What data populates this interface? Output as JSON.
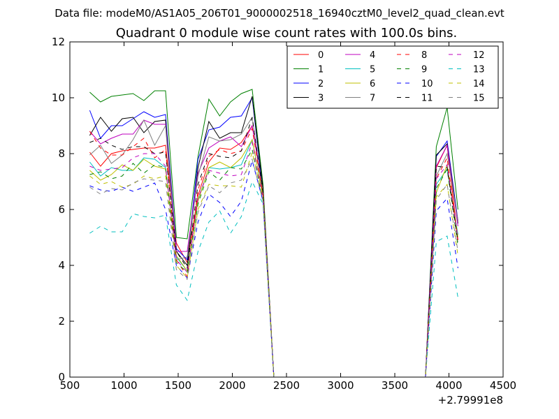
{
  "suptitle": "Data file: modeM0/AS1A05_206T01_9000002518_16940cztM0_level2_quad_clean.evt",
  "chart_data": {
    "type": "line",
    "title": "Quadrant 0 module wise count rates with 100.0s bins.",
    "xlabel": "",
    "ylabel": "",
    "xlim": [
      500,
      4500
    ],
    "ylim": [
      0,
      12
    ],
    "xticks": [
      500,
      1000,
      1500,
      2000,
      2500,
      3000,
      3500,
      4000,
      4500
    ],
    "yticks": [
      0,
      2,
      4,
      6,
      8,
      10,
      12
    ],
    "x_offset_label": "+2.79991e8",
    "grid": false,
    "legend_position": "top-right",
    "legend_columns": 4,
    "x": [
      683,
      783,
      883,
      983,
      1083,
      1183,
      1283,
      1383,
      1483,
      1583,
      1683,
      1783,
      1883,
      1983,
      2083,
      2183,
      2283,
      2383,
      3783,
      3883,
      3983,
      4083
    ],
    "series": [
      {
        "name": "0",
        "color": "#ff0000",
        "dash": false,
        "values": [
          8.05,
          7.55,
          8.0,
          8.1,
          8.15,
          8.2,
          8.2,
          8.3,
          4.8,
          4.1,
          6.5,
          7.7,
          8.2,
          8.15,
          8.4,
          9.0,
          6.7,
          0,
          0,
          7.5,
          8.3,
          4.9
        ]
      },
      {
        "name": "1",
        "color": "#008000",
        "dash": false,
        "values": [
          10.2,
          9.85,
          10.05,
          10.1,
          10.15,
          9.9,
          10.25,
          10.25,
          5.0,
          4.95,
          7.9,
          9.95,
          9.35,
          9.85,
          10.15,
          10.3,
          6.9,
          0,
          0,
          8.25,
          9.65,
          6.0
        ]
      },
      {
        "name": "2",
        "color": "#0000ff",
        "dash": false,
        "values": [
          9.55,
          8.55,
          9.0,
          9.0,
          9.25,
          9.5,
          9.3,
          9.4,
          4.6,
          4.2,
          7.8,
          8.85,
          8.95,
          9.3,
          9.35,
          10.0,
          6.6,
          0,
          0,
          7.9,
          8.45,
          5.6
        ]
      },
      {
        "name": "3",
        "color": "#000000",
        "dash": false,
        "values": [
          8.65,
          9.3,
          8.8,
          9.25,
          9.3,
          8.75,
          9.15,
          9.2,
          4.5,
          4.0,
          7.5,
          9.15,
          8.55,
          8.75,
          8.75,
          10.05,
          6.75,
          0,
          0,
          7.95,
          8.35,
          5.5
        ]
      },
      {
        "name": "4",
        "color": "#bf00bf",
        "dash": false,
        "values": [
          8.8,
          8.35,
          8.55,
          8.7,
          8.7,
          9.2,
          9.05,
          9.05,
          4.5,
          4.5,
          7.3,
          8.2,
          8.45,
          8.6,
          8.25,
          9.0,
          6.6,
          0,
          0,
          7.55,
          8.3,
          5.4
        ]
      },
      {
        "name": "5",
        "color": "#00bfbf",
        "dash": false,
        "values": [
          7.7,
          7.2,
          7.5,
          7.4,
          7.4,
          7.85,
          7.8,
          7.5,
          4.3,
          3.8,
          6.35,
          7.5,
          7.45,
          7.5,
          7.6,
          8.5,
          6.45,
          0,
          0,
          6.9,
          7.45,
          5.1
        ]
      },
      {
        "name": "6",
        "color": "#bfbf00",
        "dash": false,
        "values": [
          7.4,
          7.05,
          7.25,
          7.6,
          7.4,
          7.8,
          7.55,
          7.45,
          4.35,
          3.8,
          6.3,
          7.5,
          7.7,
          7.5,
          7.85,
          8.5,
          6.5,
          0,
          0,
          6.6,
          7.6,
          5.0
        ]
      },
      {
        "name": "7",
        "color": "#808080",
        "dash": false,
        "values": [
          7.95,
          8.3,
          7.65,
          7.95,
          8.5,
          9.2,
          8.3,
          9.0,
          4.2,
          4.3,
          7.2,
          8.6,
          8.45,
          8.5,
          8.7,
          9.3,
          6.6,
          0,
          0,
          7.2,
          8.0,
          5.6
        ]
      },
      {
        "name": "8",
        "color": "#ff0000",
        "dash": true,
        "values": [
          8.8,
          8.2,
          7.95,
          7.95,
          8.25,
          8.55,
          7.85,
          8.15,
          4.2,
          3.6,
          6.7,
          7.9,
          8.15,
          8.0,
          8.1,
          8.9,
          6.5,
          0,
          0,
          7.1,
          7.85,
          4.8
        ]
      },
      {
        "name": "9",
        "color": "#008000",
        "dash": true,
        "values": [
          7.25,
          7.35,
          7.1,
          7.2,
          7.65,
          7.3,
          7.6,
          7.5,
          4.1,
          3.75,
          6.2,
          7.35,
          7.05,
          7.5,
          7.45,
          8.15,
          6.3,
          0,
          0,
          6.75,
          7.45,
          4.7
        ]
      },
      {
        "name": "10",
        "color": "#0000ff",
        "dash": true,
        "values": [
          6.85,
          6.7,
          6.65,
          6.8,
          6.65,
          6.8,
          6.95,
          6.0,
          4.0,
          3.55,
          5.55,
          6.55,
          6.25,
          5.75,
          6.3,
          7.75,
          6.3,
          0,
          0,
          5.95,
          6.4,
          3.9
        ]
      },
      {
        "name": "11",
        "color": "#000000",
        "dash": true,
        "values": [
          8.4,
          8.55,
          8.3,
          8.15,
          8.25,
          8.25,
          8.0,
          8.05,
          4.5,
          3.9,
          6.9,
          8.0,
          7.9,
          7.85,
          8.1,
          9.3,
          6.6,
          0,
          0,
          7.55,
          7.5,
          4.85
        ]
      },
      {
        "name": "12",
        "color": "#bf00bf",
        "dash": true,
        "values": [
          7.55,
          7.4,
          7.45,
          7.5,
          7.85,
          8.0,
          8.0,
          7.55,
          4.2,
          3.75,
          6.4,
          7.4,
          7.3,
          7.2,
          7.25,
          8.4,
          6.4,
          0,
          0,
          7.1,
          7.6,
          4.95
        ]
      },
      {
        "name": "13",
        "color": "#00bfbf",
        "dash": true,
        "values": [
          5.15,
          5.4,
          5.2,
          5.2,
          5.85,
          5.75,
          5.7,
          5.8,
          3.3,
          2.75,
          4.5,
          5.55,
          5.95,
          5.15,
          5.75,
          7.0,
          6.2,
          0,
          0,
          4.85,
          5.05,
          2.85
        ]
      },
      {
        "name": "14",
        "color": "#bfbf00",
        "dash": true,
        "values": [
          7.2,
          6.9,
          7.0,
          6.8,
          6.9,
          7.2,
          7.1,
          7.2,
          4.0,
          3.55,
          6.0,
          6.9,
          6.85,
          6.85,
          6.8,
          8.05,
          6.4,
          0,
          0,
          6.45,
          6.9,
          4.35
        ]
      },
      {
        "name": "15",
        "color": "#808080",
        "dash": true,
        "values": [
          6.8,
          6.55,
          6.75,
          6.7,
          6.95,
          7.1,
          7.05,
          7.0,
          3.85,
          3.5,
          5.9,
          6.85,
          6.6,
          6.95,
          7.05,
          7.8,
          6.3,
          0,
          0,
          6.35,
          6.9,
          4.5
        ]
      }
    ]
  }
}
